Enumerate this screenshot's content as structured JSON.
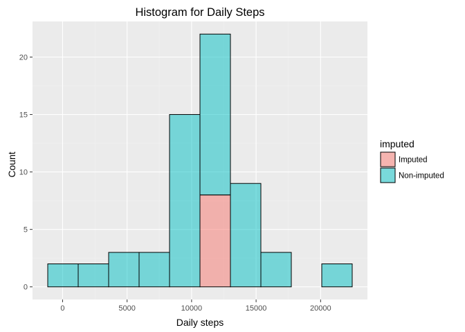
{
  "chart_data": {
    "type": "bar",
    "title": "Histogram for Daily Steps",
    "xlabel": "Daily steps",
    "ylabel": "Count",
    "stacked": true,
    "bin_edges": [
      -1150,
      1210,
      3570,
      5930,
      8290,
      10650,
      13010,
      15370,
      17730,
      20090,
      22450
    ],
    "series": [
      {
        "name": "Imputed",
        "color": "#f8766d",
        "values": [
          0,
          0,
          0,
          0,
          0,
          8,
          0,
          0,
          0,
          0
        ]
      },
      {
        "name": "Non-imputed",
        "color": "#00bfc4",
        "values": [
          2,
          2,
          3,
          3,
          15,
          14,
          9,
          3,
          0,
          2
        ]
      }
    ],
    "xlim": [
      -2330,
      23630
    ],
    "ylim": [
      -1.1,
      23.1
    ],
    "xticks": [
      0,
      5000,
      10000,
      15000,
      20000
    ],
    "xtick_labels": [
      "0",
      "5000",
      "10000",
      "15000",
      "20000"
    ],
    "yticks": [
      0,
      5,
      10,
      15,
      20
    ],
    "ytick_labels": [
      "0",
      "5",
      "10",
      "15",
      "20"
    ],
    "grid": true,
    "panel_background": "#ebebeb",
    "fill_alpha": 0.5,
    "legend": {
      "title": "imputed",
      "position": "right"
    }
  }
}
